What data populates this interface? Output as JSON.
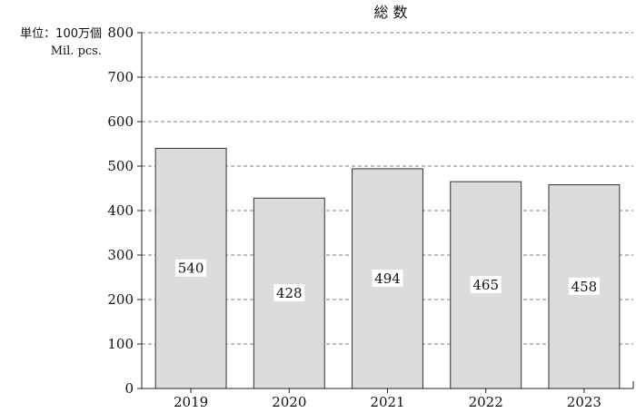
{
  "chart_data": {
    "type": "bar",
    "title": "総 数",
    "unit_label_ja": "単位：100万個",
    "unit_label_en": "Mil. pcs.",
    "categories": [
      "2019",
      "2020",
      "2021",
      "2022",
      "2023"
    ],
    "values": [
      540,
      428,
      494,
      465,
      458
    ],
    "data_labels": [
      "540",
      "428",
      "494",
      "465",
      "458"
    ],
    "ylim": [
      0,
      800
    ],
    "yticks": [
      0,
      100,
      200,
      300,
      400,
      500,
      600,
      700,
      800
    ],
    "ytick_labels": [
      "0",
      "100",
      "200",
      "300",
      "400",
      "500",
      "600",
      "700",
      "800"
    ],
    "grid": true,
    "grid_style": "dashed",
    "bar_color": "#dcdcdc",
    "bar_edge_color": "#333333"
  }
}
